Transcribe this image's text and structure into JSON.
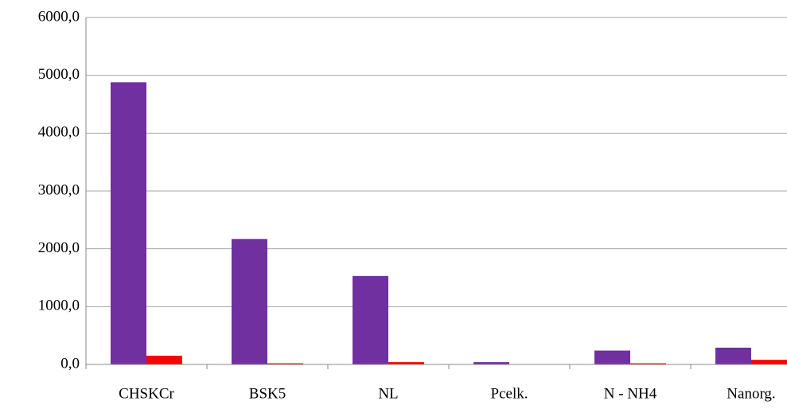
{
  "chart_data": {
    "type": "bar",
    "categories": [
      "CHSKCr",
      "BSK5",
      "NL",
      "Pcelk.",
      "N - NH4",
      "Nanorg."
    ],
    "series": [
      {
        "color": "#7030a0",
        "values": [
          4880,
          2170,
          1530,
          40,
          240,
          290
        ]
      },
      {
        "color": "#ff0000",
        "values": [
          150,
          20,
          40,
          5,
          20,
          80
        ]
      }
    ],
    "ylim": [
      0,
      6000
    ],
    "yticks": [
      {
        "value": 0,
        "label": "0,0"
      },
      {
        "value": 1000,
        "label": "1000,0"
      },
      {
        "value": 2000,
        "label": "2000,0"
      },
      {
        "value": 3000,
        "label": "3000,0"
      },
      {
        "value": 4000,
        "label": "4000,0"
      },
      {
        "value": 5000,
        "label": "5000,0"
      },
      {
        "value": 6000,
        "label": "6000,0"
      }
    ],
    "grid": true
  }
}
